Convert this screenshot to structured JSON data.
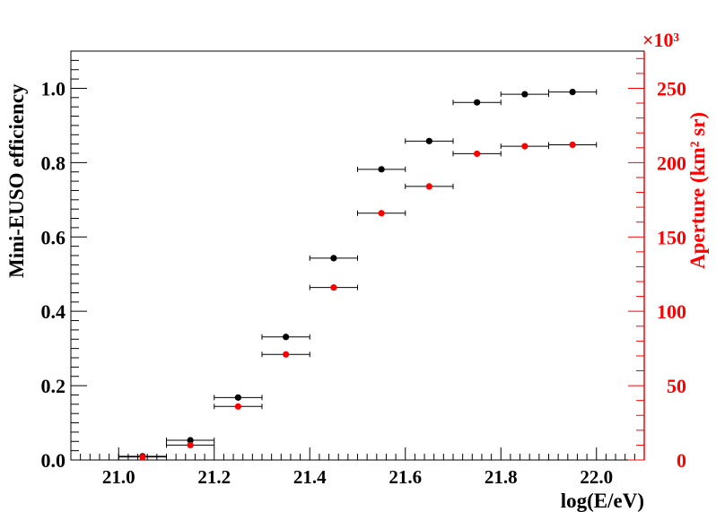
{
  "chart_data": {
    "type": "scatter",
    "xlabel": "log(E/eV)",
    "ylabel_left": "Mini-EUSO efficiency",
    "ylabel_right": "Aperture (km² sr)",
    "right_axis_multiplier": "×10³",
    "xlim": [
      20.9,
      22.1
    ],
    "ylim_left": [
      0.0,
      1.1
    ],
    "ylim_right": [
      0,
      275
    ],
    "x_ticks": [
      "21.0",
      "21.2",
      "21.4",
      "21.6",
      "21.8",
      "22.0"
    ],
    "y_left_ticks": [
      "0.0",
      "0.2",
      "0.4",
      "0.6",
      "0.8",
      "1.0"
    ],
    "y_right_ticks": [
      "0",
      "50",
      "100",
      "150",
      "200",
      "250"
    ],
    "x_ticks_values": [
      21.0,
      21.2,
      21.4,
      21.6,
      21.8,
      22.0
    ],
    "y_left_ticks_values": [
      0.0,
      0.2,
      0.4,
      0.6,
      0.8,
      1.0
    ],
    "y_right_ticks_values": [
      0,
      50,
      100,
      150,
      200,
      250
    ],
    "bin_half_width": 0.05,
    "x": [
      21.05,
      21.15,
      21.25,
      21.35,
      21.45,
      21.55,
      21.65,
      21.75,
      21.85,
      21.95
    ],
    "series": [
      {
        "axis": "left",
        "color": "#000000",
        "values": [
          0.01,
          0.053,
          0.168,
          0.331,
          0.543,
          0.782,
          0.858,
          0.962,
          0.984,
          0.99
        ]
      },
      {
        "axis": "right",
        "color": "#ff0000",
        "values": [
          2,
          10,
          36,
          71,
          116,
          166,
          184,
          206,
          211,
          212
        ]
      }
    ],
    "grid": false,
    "legend": "none"
  }
}
